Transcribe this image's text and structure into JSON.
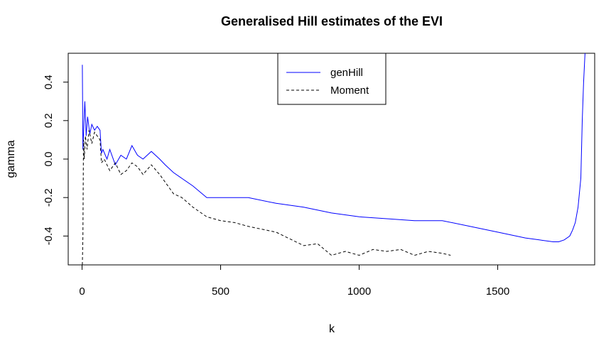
{
  "chart_data": {
    "type": "line",
    "title": "Generalised Hill estimates of the EVI",
    "xlabel": "k",
    "ylabel": "gamma",
    "xlim": [
      -50,
      1850
    ],
    "ylim": [
      -0.55,
      0.55
    ],
    "x_ticks": [
      {
        "value": 0,
        "label": "0"
      },
      {
        "value": 500,
        "label": "500"
      },
      {
        "value": 1000,
        "label": "1000"
      },
      {
        "value": 1500,
        "label": "1500"
      }
    ],
    "y_ticks": [
      {
        "value": -0.4,
        "label": "-0.4"
      },
      {
        "value": -0.2,
        "label": "-0.2"
      },
      {
        "value": 0.0,
        "label": "0.0"
      },
      {
        "value": 0.2,
        "label": "0.2"
      },
      {
        "value": 0.4,
        "label": "0.4"
      }
    ],
    "grid": false,
    "legend_position": "top-center",
    "series": [
      {
        "name": "genHill",
        "color": "#0000ff",
        "line_style": "solid",
        "x": [
          1,
          3,
          6,
          10,
          15,
          20,
          28,
          35,
          45,
          55,
          65,
          70,
          75,
          90,
          100,
          120,
          140,
          160,
          180,
          200,
          220,
          250,
          280,
          300,
          330,
          360,
          400,
          450,
          500,
          550,
          600,
          700,
          800,
          900,
          1000,
          1100,
          1200,
          1300,
          1400,
          1500,
          1600,
          1650,
          1700,
          1720,
          1740,
          1760,
          1770,
          1780,
          1790,
          1800,
          1805,
          1810,
          1815
        ],
        "y": [
          0.49,
          0.05,
          0.15,
          0.3,
          0.12,
          0.22,
          0.13,
          0.18,
          0.15,
          0.17,
          0.15,
          0.03,
          0.05,
          0.0,
          0.05,
          -0.03,
          0.02,
          0.0,
          0.07,
          0.02,
          0.0,
          0.04,
          0.0,
          -0.03,
          -0.07,
          -0.1,
          -0.14,
          -0.2,
          -0.2,
          -0.2,
          -0.2,
          -0.23,
          -0.25,
          -0.28,
          -0.3,
          -0.31,
          -0.32,
          -0.32,
          -0.35,
          -0.38,
          -0.41,
          -0.42,
          -0.43,
          -0.43,
          -0.42,
          -0.4,
          -0.37,
          -0.33,
          -0.25,
          -0.1,
          0.2,
          0.4,
          0.55
        ]
      },
      {
        "name": "Moment",
        "color": "#000000",
        "line_style": "dashed",
        "x": [
          1,
          3,
          5,
          8,
          12,
          18,
          25,
          35,
          45,
          55,
          65,
          70,
          80,
          100,
          120,
          140,
          160,
          180,
          200,
          220,
          250,
          280,
          300,
          330,
          360,
          400,
          450,
          500,
          550,
          600,
          700,
          800,
          850,
          900,
          950,
          1000,
          1050,
          1100,
          1150,
          1200,
          1250,
          1300,
          1330
        ],
        "y": [
          -0.55,
          -0.4,
          0.1,
          0.0,
          0.12,
          0.05,
          0.15,
          0.08,
          0.14,
          0.12,
          0.1,
          -0.02,
          0.0,
          -0.06,
          -0.02,
          -0.08,
          -0.06,
          -0.02,
          -0.04,
          -0.08,
          -0.03,
          -0.08,
          -0.12,
          -0.18,
          -0.2,
          -0.25,
          -0.3,
          -0.32,
          -0.33,
          -0.35,
          -0.38,
          -0.45,
          -0.44,
          -0.5,
          -0.48,
          -0.5,
          -0.47,
          -0.48,
          -0.47,
          -0.5,
          -0.48,
          -0.49,
          -0.5
        ]
      }
    ]
  }
}
